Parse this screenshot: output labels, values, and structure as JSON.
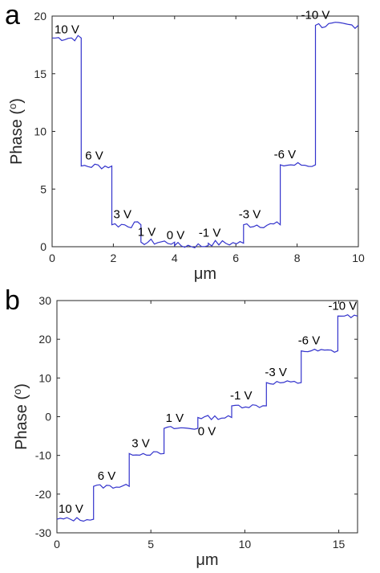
{
  "panels": [
    {
      "label": "a"
    },
    {
      "label": "b"
    }
  ],
  "chart_data": [
    {
      "type": "line",
      "panel": "a",
      "xlabel": "μm",
      "ylabel": "Phase (o)",
      "xlim": [
        0,
        10
      ],
      "ylim": [
        0,
        20
      ],
      "xticks": [
        "0",
        "2",
        "4",
        "6",
        "8",
        "10"
      ],
      "yticks": [
        "0",
        "5",
        "10",
        "15",
        "20"
      ],
      "line_color": "#3333cc",
      "grid": false,
      "steps": [
        {
          "x_start": 0.0,
          "x_end": 0.95,
          "y": 18.1,
          "label": "10 V"
        },
        {
          "x_start": 0.95,
          "x_end": 1.95,
          "y": 7.0,
          "label": "6 V"
        },
        {
          "x_start": 1.95,
          "x_end": 2.9,
          "y": 1.9,
          "label": "3 V"
        },
        {
          "x_start": 2.9,
          "x_end": 4.0,
          "y": 0.4,
          "label": "1 V"
        },
        {
          "x_start": 4.0,
          "x_end": 5.1,
          "y": 0.1,
          "label": "0 V"
        },
        {
          "x_start": 5.1,
          "x_end": 6.25,
          "y": 0.3,
          "label": "-1 V"
        },
        {
          "x_start": 6.25,
          "x_end": 7.45,
          "y": 1.9,
          "label": "-3 V"
        },
        {
          "x_start": 7.45,
          "x_end": 8.6,
          "y": 7.1,
          "label": "-6 V"
        },
        {
          "x_start": 8.6,
          "x_end": 10.0,
          "y": 19.2,
          "label": "-10 V"
        }
      ]
    },
    {
      "type": "line",
      "panel": "b",
      "xlabel": "μm",
      "ylabel": "Phase (o)",
      "xlim": [
        0,
        16
      ],
      "ylim": [
        -30,
        30
      ],
      "xticks": [
        "0",
        "5",
        "10",
        "15"
      ],
      "yticks": [
        "-30",
        "-20",
        "-10",
        "0",
        "10",
        "20",
        "30"
      ],
      "line_color": "#3333cc",
      "grid": false,
      "steps": [
        {
          "x_start": 0.0,
          "x_end": 1.95,
          "y": -26.5,
          "label": "10 V"
        },
        {
          "x_start": 1.95,
          "x_end": 3.85,
          "y": -18.0,
          "label": "6 V"
        },
        {
          "x_start": 3.85,
          "x_end": 5.7,
          "y": -9.5,
          "label": "3 V"
        },
        {
          "x_start": 5.7,
          "x_end": 7.5,
          "y": -3.0,
          "label": "1 V"
        },
        {
          "x_start": 7.5,
          "x_end": 9.3,
          "y": -0.2,
          "label": "0 V"
        },
        {
          "x_start": 9.3,
          "x_end": 11.15,
          "y": 2.8,
          "label": "-1 V"
        },
        {
          "x_start": 11.15,
          "x_end": 13.0,
          "y": 8.8,
          "label": "-3 V"
        },
        {
          "x_start": 13.0,
          "x_end": 14.95,
          "y": 17.0,
          "label": "-6 V"
        },
        {
          "x_start": 14.95,
          "x_end": 16.0,
          "y": 26.0,
          "label": "-10 V"
        }
      ]
    }
  ]
}
